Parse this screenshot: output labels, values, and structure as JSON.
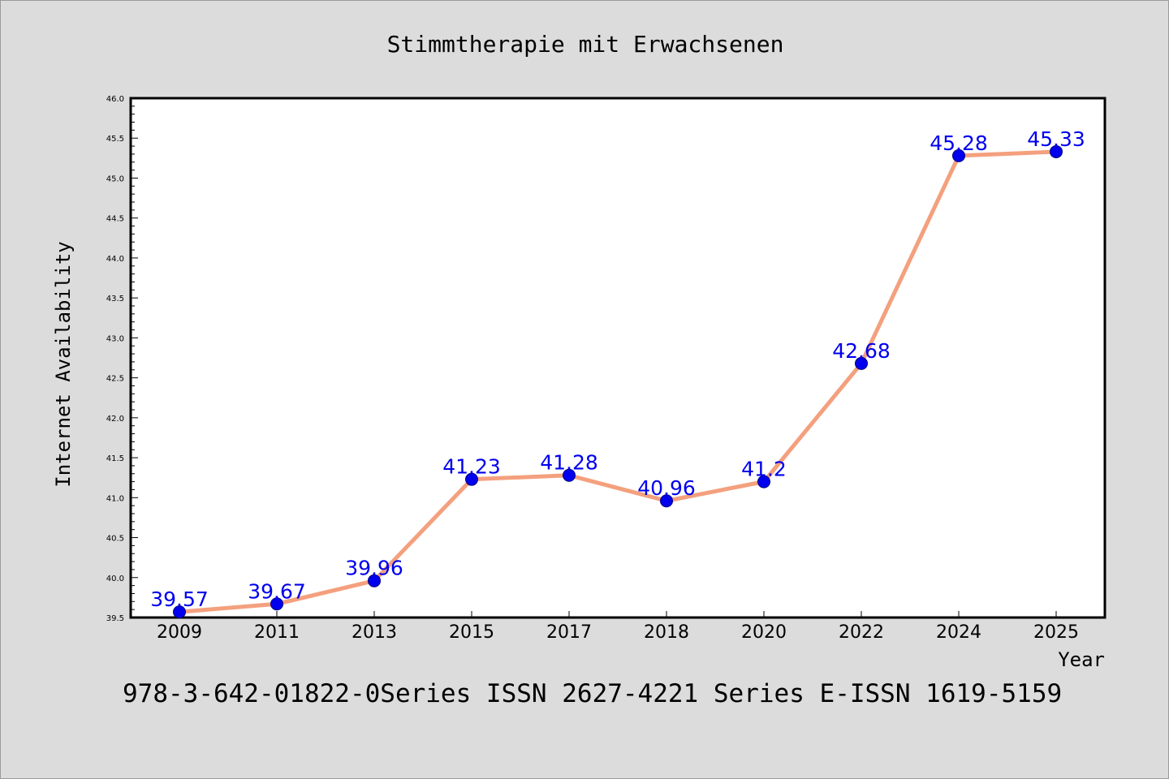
{
  "chart_data": {
    "type": "line",
    "title": "Stimmtherapie mit Erwachsenen",
    "xlabel": "Year",
    "ylabel": "Internet Availability",
    "categories": [
      "2009",
      "2011",
      "2013",
      "2015",
      "2017",
      "2018",
      "2020",
      "2022",
      "2024",
      "2025"
    ],
    "series": [
      {
        "values": [
          39.57,
          39.67,
          39.96,
          41.23,
          41.28,
          40.96,
          41.2,
          42.68,
          45.28,
          45.33
        ],
        "labels": [
          "39.57",
          "39.67",
          "39.96",
          "41.23",
          "41.28",
          "40.96",
          "41.2",
          "42.68",
          "45.28",
          "45.33"
        ]
      }
    ],
    "ylim": [
      39.5,
      46.0
    ],
    "yticks": [
      "39.5",
      "40.0",
      "40.5",
      "41.0",
      "41.5",
      "42.0",
      "42.5",
      "43.0",
      "43.5",
      "44.0",
      "44.5",
      "45.0",
      "45.5",
      "46.0"
    ],
    "grid": false,
    "colors": {
      "line": "#f4a07e",
      "marker": "#0000ee",
      "label": "#0000ee",
      "background": "#dcdcdc",
      "plot_background": "#ffffff"
    }
  },
  "footer": "978-3-642-01822-0Series ISSN 2627-4221 Series E-ISSN 1619-5159"
}
